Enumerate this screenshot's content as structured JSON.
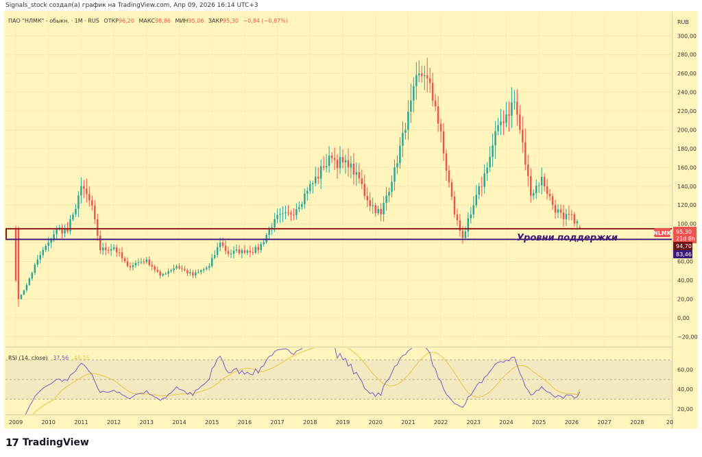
{
  "header": {
    "credit": "Signals_stock создал(а) график на TradingView.com, Апр 09, 2026 16:14 UTC+3"
  },
  "legend": {
    "instrument": "ПАО \"НЛМК\" - обыкн. · 1М · RUS",
    "open_label": "ОТКР",
    "open_value": "96,20",
    "high_label": "МАКС",
    "high_value": "98,86",
    "low_label": "МИН",
    "low_value": "95,06",
    "close_label": "ЗАКР",
    "close_value": "95,30",
    "change": "−0,84 (−0,87%)"
  },
  "currency": "RUB",
  "annotation": "Уровни поддержки",
  "price_badges": {
    "symbol": "NLMK",
    "last_price": "95,30",
    "countdown": "21d 8h",
    "level_1": "94,70",
    "level_2": "83,46"
  },
  "rsi_legend": {
    "title": "RSI (14, close)",
    "rsi_value": "37,56",
    "ma_value": "40,15"
  },
  "colors": {
    "background": "#FFF5BD",
    "up": "#26A69A",
    "down": "#EF5350",
    "support_red": "#8B1A1A",
    "support_purple": "#3D1A78",
    "rsi_line": "#7E57C2",
    "rsi_ma": "#E8C840",
    "rsi_band": "#F2E9C0"
  },
  "footer": {
    "brand": "TradingView"
  },
  "chart_data": [
    {
      "type": "candlestick",
      "timeframe": "1M",
      "currency": "RUB",
      "x_range": [
        "2009-01",
        "2026-04"
      ],
      "ylim": [
        -30,
        325
      ],
      "y_ticks": [
        -20,
        0,
        20,
        40,
        60,
        80,
        100,
        120,
        140,
        160,
        180,
        200,
        220,
        240,
        260,
        280,
        300
      ],
      "y_tick_labels": [
        "−20,00",
        "0,00",
        "20,00",
        "40,00",
        "60,00",
        "80,00",
        "100,00",
        "120,00",
        "140,00",
        "160,00",
        "180,00",
        "200,00",
        "220,00",
        "240,00",
        "260,00",
        "280,00",
        "300,00"
      ],
      "x_tick_labels": [
        "2009",
        "2010",
        "2011",
        "2012",
        "2013",
        "2014",
        "2015",
        "2016",
        "2017",
        "2018",
        "2019",
        "2020",
        "2021",
        "2022",
        "2023",
        "2024",
        "2025",
        "2026",
        "2027",
        "2028",
        "20"
      ],
      "horizontal_levels": [
        {
          "value": 94.7,
          "color": "#8B1A1A"
        },
        {
          "value": 83.46,
          "color": "#3D1A78"
        }
      ],
      "last": {
        "open": 96.2,
        "high": 98.86,
        "low": 95.06,
        "close": 95.3
      },
      "monthly_close_anchors": [
        {
          "t": "2009-01",
          "v": 95
        },
        {
          "t": "2009-02",
          "v": 20
        },
        {
          "t": "2009-05",
          "v": 35
        },
        {
          "t": "2009-09",
          "v": 62
        },
        {
          "t": "2010-01",
          "v": 80
        },
        {
          "t": "2010-04",
          "v": 95
        },
        {
          "t": "2010-08",
          "v": 92
        },
        {
          "t": "2010-10",
          "v": 110
        },
        {
          "t": "2011-01",
          "v": 140
        },
        {
          "t": "2011-04",
          "v": 125
        },
        {
          "t": "2011-06",
          "v": 105
        },
        {
          "t": "2011-08",
          "v": 72
        },
        {
          "t": "2012-01",
          "v": 75
        },
        {
          "t": "2012-06",
          "v": 55
        },
        {
          "t": "2013-01",
          "v": 62
        },
        {
          "t": "2013-06",
          "v": 45
        },
        {
          "t": "2013-12",
          "v": 55
        },
        {
          "t": "2014-06",
          "v": 45
        },
        {
          "t": "2014-12",
          "v": 55
        },
        {
          "t": "2015-04",
          "v": 80
        },
        {
          "t": "2015-07",
          "v": 68
        },
        {
          "t": "2015-12",
          "v": 72
        },
        {
          "t": "2016-06",
          "v": 72
        },
        {
          "t": "2016-12",
          "v": 105
        },
        {
          "t": "2017-06",
          "v": 110
        },
        {
          "t": "2017-12",
          "v": 135
        },
        {
          "t": "2018-06",
          "v": 160
        },
        {
          "t": "2018-09",
          "v": 170
        },
        {
          "t": "2019-03",
          "v": 160
        },
        {
          "t": "2019-06",
          "v": 155
        },
        {
          "t": "2019-10",
          "v": 125
        },
        {
          "t": "2020-03",
          "v": 110
        },
        {
          "t": "2020-08",
          "v": 160
        },
        {
          "t": "2020-12",
          "v": 200
        },
        {
          "t": "2021-05",
          "v": 260
        },
        {
          "t": "2021-07",
          "v": 258
        },
        {
          "t": "2021-11",
          "v": 225
        },
        {
          "t": "2022-02",
          "v": 175
        },
        {
          "t": "2022-06",
          "v": 110
        },
        {
          "t": "2022-09",
          "v": 85
        },
        {
          "t": "2022-12",
          "v": 110
        },
        {
          "t": "2023-06",
          "v": 160
        },
        {
          "t": "2023-10",
          "v": 205
        },
        {
          "t": "2024-04",
          "v": 230
        },
        {
          "t": "2024-06",
          "v": 200
        },
        {
          "t": "2024-10",
          "v": 130
        },
        {
          "t": "2025-02",
          "v": 150
        },
        {
          "t": "2025-06",
          "v": 120
        },
        {
          "t": "2025-10",
          "v": 105
        },
        {
          "t": "2026-01",
          "v": 110
        },
        {
          "t": "2026-04",
          "v": 95.3
        }
      ]
    },
    {
      "type": "line",
      "title": "RSI (14, close)",
      "ylim": [
        15,
        82
      ],
      "y_ticks": [
        20,
        40,
        60
      ],
      "y_tick_labels": [
        "20,00",
        "40,00",
        "60,00"
      ],
      "bands": [
        30,
        50,
        70
      ],
      "last_rsi": 37.56,
      "last_ma": 40.15
    }
  ]
}
